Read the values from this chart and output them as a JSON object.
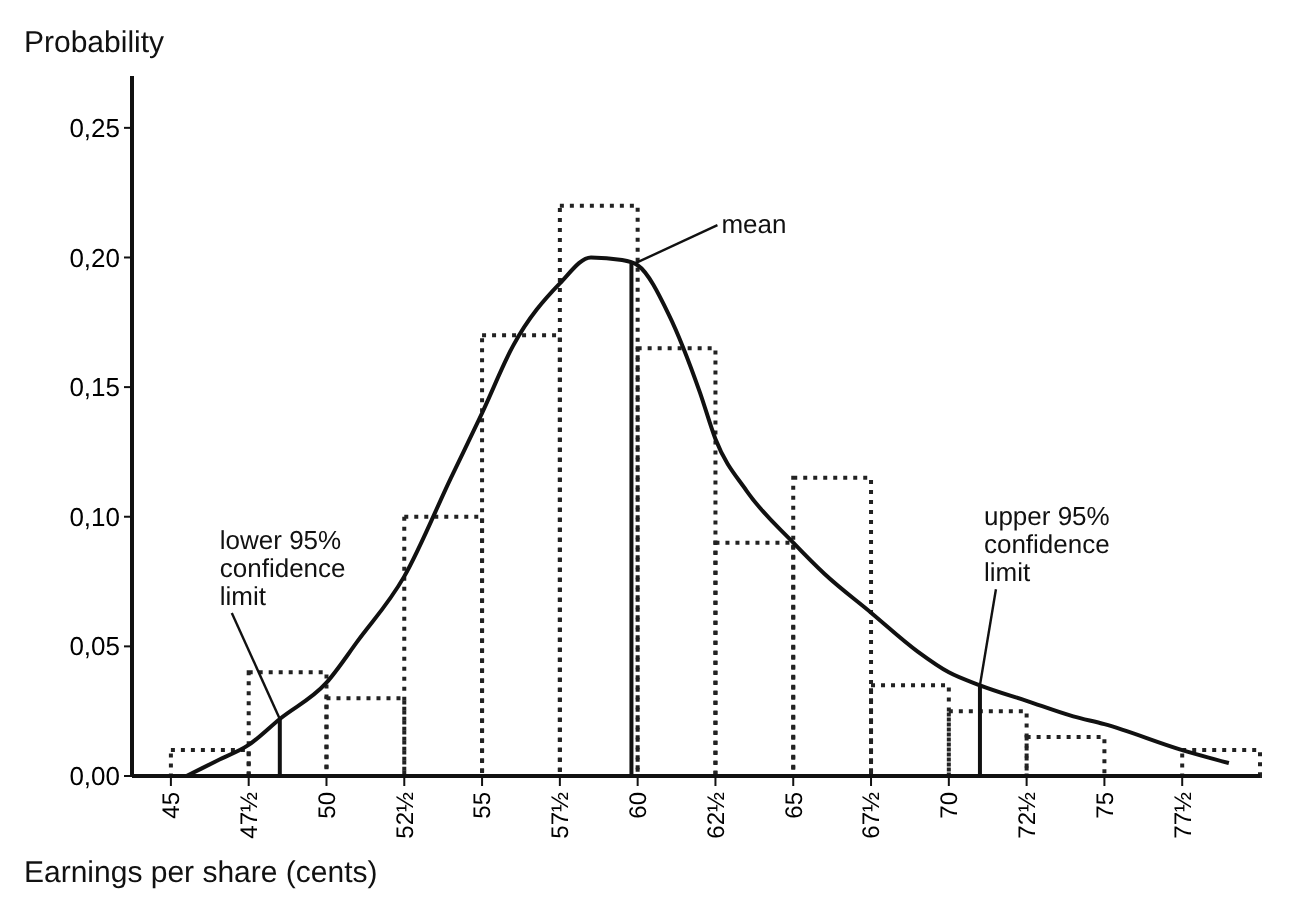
{
  "chart_data": {
    "type": "histogram",
    "ylabel": "Probability",
    "xlabel": "Earnings per share (cents)",
    "bins": [
      45,
      47.5,
      50,
      52.5,
      55,
      57.5,
      60,
      62.5,
      65,
      67.5,
      70,
      72.5,
      75,
      77.5,
      80
    ],
    "xlim": [
      43.75,
      80
    ],
    "xticks": [
      45,
      {
        "value": 47.5,
        "label": "47½"
      },
      50,
      {
        "value": 52.5,
        "label": "52½"
      },
      55,
      {
        "value": 57.5,
        "label": "57½"
      },
      60,
      {
        "value": 62.5,
        "label": "62½"
      },
      65,
      {
        "value": 67.5,
        "label": "67½"
      },
      70,
      {
        "value": 72.5,
        "label": "72½"
      },
      75,
      {
        "value": 77.5,
        "label": "77½"
      }
    ],
    "ylim": [
      0,
      0.27
    ],
    "yticks": [
      {
        "value": 0,
        "label": "0,00"
      },
      {
        "value": 0.05,
        "label": "0,05"
      },
      {
        "value": 0.1,
        "label": "0,10"
      },
      {
        "value": 0.15,
        "label": "0,15"
      },
      {
        "value": 0.2,
        "label": "0,20"
      },
      {
        "value": 0.25,
        "label": "0,25"
      }
    ],
    "series": [
      {
        "color": "#222222",
        "values": [
          0.01,
          0.04,
          0.03,
          0.1,
          0.17,
          0.22,
          0.165,
          0.09,
          0.115,
          0.035,
          0.025,
          0.015,
          0,
          0.01
        ]
      },
      {
        "type": "line",
        "color": "#111111",
        "x": [
          45.5,
          46.5,
          47.5,
          48.5,
          50,
          51,
          52.5,
          54,
          55,
          56,
          57.5,
          58.5,
          59.5,
          60,
          61,
          62,
          62.5,
          63.5,
          65,
          66,
          67.5,
          69,
          70,
          71,
          72.5,
          74,
          75,
          77.5,
          79
        ],
        "values": [
          0,
          0.006,
          0.012,
          0.022,
          0.036,
          0.052,
          0.077,
          0.115,
          0.14,
          0.166,
          0.19,
          0.2,
          0.199,
          0.197,
          0.178,
          0.148,
          0.13,
          0.11,
          0.09,
          0.078,
          0.063,
          0.048,
          0.04,
          0.035,
          0.029,
          0.023,
          0.02,
          0.01,
          0.005
        ]
      }
    ],
    "ref_lines": [
      {
        "axis": "x",
        "value": 48.5,
        "label": "lower 95%\nconfidence\nlimit"
      },
      {
        "axis": "x",
        "value": 59.8,
        "label": "mean"
      },
      {
        "axis": "x",
        "value": 71,
        "label": "upper 95%\nconfidence\nlimit"
      }
    ]
  }
}
